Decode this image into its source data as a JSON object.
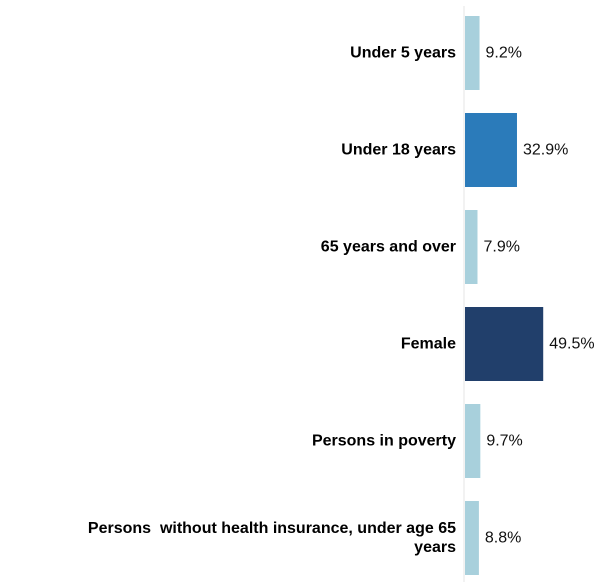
{
  "chart_data": {
    "type": "bar",
    "orientation": "horizontal",
    "categories": [
      [
        "Under 5 years"
      ],
      [
        "Under 18 years"
      ],
      [
        "65 years and over"
      ],
      [
        "Female"
      ],
      [
        "Persons in poverty"
      ],
      [
        "Persons  without health insurance, under age 65",
        "years"
      ]
    ],
    "values": [
      9.2,
      32.9,
      7.9,
      49.5,
      9.7,
      8.8
    ],
    "value_labels": [
      "9.2%",
      "32.9%",
      "7.9%",
      "49.5%",
      "9.7%",
      "8.8%"
    ],
    "colors": [
      "#a8d0dc",
      "#2b7bba",
      "#a8d0dc",
      "#213f6b",
      "#a8d0dc",
      "#a8d0dc"
    ],
    "xlim": [
      0,
      100
    ],
    "grid": false,
    "legend": "none"
  }
}
